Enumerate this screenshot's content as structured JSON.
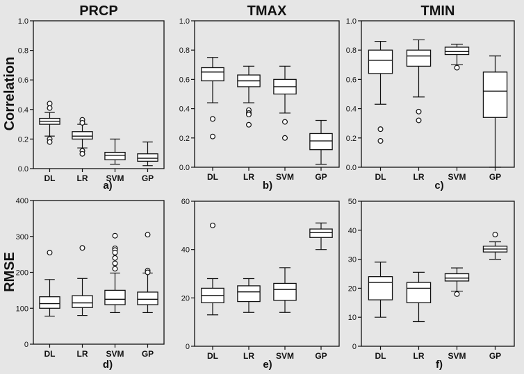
{
  "chart_data": [
    {
      "type": "box",
      "panel": "a)",
      "title": "PRCP",
      "ylabel": "Correlation",
      "categories": [
        "DL",
        "LR",
        "SVM",
        "GP"
      ],
      "ylim": [
        0,
        1.0
      ],
      "yticks": [
        "0.0",
        "0.2",
        "0.4",
        "0.6",
        "0.8",
        "1.0"
      ],
      "boxes": [
        {
          "min": 0.22,
          "q1": 0.3,
          "median": 0.32,
          "q3": 0.34,
          "max": 0.38,
          "outliers": [
            0.44,
            0.41,
            0.2,
            0.18
          ]
        },
        {
          "min": 0.14,
          "q1": 0.2,
          "median": 0.22,
          "q3": 0.25,
          "max": 0.3,
          "outliers": [
            0.33,
            0.31,
            0.12,
            0.1
          ]
        },
        {
          "min": 0.03,
          "q1": 0.06,
          "median": 0.09,
          "q3": 0.11,
          "max": 0.2,
          "outliers": []
        },
        {
          "min": 0.02,
          "q1": 0.05,
          "median": 0.07,
          "q3": 0.1,
          "max": 0.18,
          "outliers": []
        }
      ]
    },
    {
      "type": "box",
      "panel": "b)",
      "title": "TMAX",
      "ylabel": "",
      "categories": [
        "DL",
        "LR",
        "SVM",
        "GP"
      ],
      "ylim": [
        0,
        1.0
      ],
      "yticks": [
        "0.0",
        "0.2",
        "0.4",
        "0.6",
        "0.8",
        "1.0"
      ],
      "boxes": [
        {
          "min": 0.44,
          "q1": 0.59,
          "median": 0.65,
          "q3": 0.68,
          "max": 0.75,
          "outliers": [
            0.33,
            0.21
          ]
        },
        {
          "min": 0.44,
          "q1": 0.55,
          "median": 0.59,
          "q3": 0.63,
          "max": 0.69,
          "outliers": [
            0.39,
            0.37,
            0.36,
            0.29
          ]
        },
        {
          "min": 0.37,
          "q1": 0.5,
          "median": 0.55,
          "q3": 0.6,
          "max": 0.69,
          "outliers": [
            0.31,
            0.2
          ]
        },
        {
          "min": 0.02,
          "q1": 0.12,
          "median": 0.18,
          "q3": 0.23,
          "max": 0.32,
          "outliers": []
        }
      ]
    },
    {
      "type": "box",
      "panel": "c)",
      "title": "TMIN",
      "ylabel": "",
      "categories": [
        "DL",
        "LR",
        "SVM",
        "GP"
      ],
      "ylim": [
        0,
        1.0
      ],
      "yticks": [
        "0.0",
        "0.2",
        "0.4",
        "0.6",
        "0.8",
        "1.0"
      ],
      "boxes": [
        {
          "min": 0.43,
          "q1": 0.64,
          "median": 0.73,
          "q3": 0.8,
          "max": 0.86,
          "outliers": [
            0.26,
            0.18
          ]
        },
        {
          "min": 0.48,
          "q1": 0.69,
          "median": 0.76,
          "q3": 0.8,
          "max": 0.87,
          "outliers": [
            0.38,
            0.32
          ]
        },
        {
          "min": 0.7,
          "q1": 0.77,
          "median": 0.79,
          "q3": 0.82,
          "max": 0.84,
          "outliers": [
            0.68
          ]
        },
        {
          "min": 0.0,
          "q1": 0.34,
          "median": 0.52,
          "q3": 0.65,
          "max": 0.76,
          "outliers": []
        }
      ]
    },
    {
      "type": "box",
      "panel": "d)",
      "title": "",
      "ylabel": "RMSE",
      "categories": [
        "DL",
        "LR",
        "SVM",
        "GP"
      ],
      "ylim": [
        0,
        400
      ],
      "yticks": [
        "0",
        "100",
        "200",
        "300",
        "400"
      ],
      "boxes": [
        {
          "min": 78,
          "q1": 100,
          "median": 113,
          "q3": 132,
          "max": 180,
          "outliers": [
            255
          ]
        },
        {
          "min": 80,
          "q1": 102,
          "median": 115,
          "q3": 135,
          "max": 183,
          "outliers": [
            268
          ]
        },
        {
          "min": 88,
          "q1": 110,
          "median": 125,
          "q3": 150,
          "max": 198,
          "outliers": [
            302,
            267,
            262,
            255,
            240,
            225,
            210
          ]
        },
        {
          "min": 88,
          "q1": 110,
          "median": 125,
          "q3": 145,
          "max": 198,
          "outliers": [
            305,
            205,
            200
          ]
        }
      ]
    },
    {
      "type": "box",
      "panel": "e)",
      "title": "",
      "ylabel": "",
      "categories": [
        "DL",
        "LR",
        "SVM",
        "GP"
      ],
      "ylim": [
        0,
        60
      ],
      "yticks": [
        "0",
        "20",
        "40",
        "60"
      ],
      "boxes": [
        {
          "min": 13,
          "q1": 18,
          "median": 21,
          "q3": 24,
          "max": 28,
          "outliers": [
            50
          ]
        },
        {
          "min": 14,
          "q1": 18.5,
          "median": 22.5,
          "q3": 25,
          "max": 28,
          "outliers": []
        },
        {
          "min": 14,
          "q1": 19,
          "median": 23.5,
          "q3": 26,
          "max": 32.5,
          "outliers": []
        },
        {
          "min": 40,
          "q1": 45,
          "median": 47,
          "q3": 48.5,
          "max": 51,
          "outliers": []
        }
      ]
    },
    {
      "type": "box",
      "panel": "f)",
      "title": "",
      "ylabel": "",
      "categories": [
        "DL",
        "LR",
        "SVM",
        "GP"
      ],
      "ylim": [
        0,
        50
      ],
      "yticks": [
        "0",
        "10",
        "20",
        "30",
        "40",
        "50"
      ],
      "boxes": [
        {
          "min": 10,
          "q1": 16,
          "median": 22,
          "q3": 24,
          "max": 29,
          "outliers": []
        },
        {
          "min": 8.5,
          "q1": 15,
          "median": 20,
          "q3": 22,
          "max": 25.5,
          "outliers": []
        },
        {
          "min": 19,
          "q1": 22.5,
          "median": 23.5,
          "q3": 25,
          "max": 27,
          "outliers": [
            18
          ]
        },
        {
          "min": 30,
          "q1": 32.5,
          "median": 33.5,
          "q3": 34.5,
          "max": 36,
          "outliers": [
            38.5
          ]
        }
      ]
    }
  ]
}
